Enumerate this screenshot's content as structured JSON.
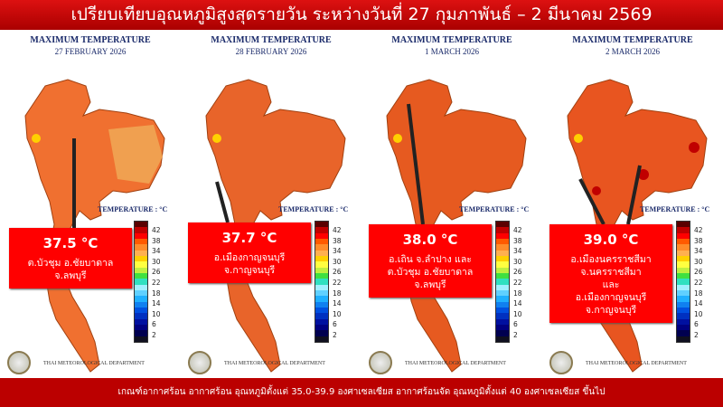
{
  "header": {
    "title": "เปรียบเทียบอุณหภูมิสูงสุดรายวัน ระหว่างวันที่ 27 กุมภาพันธ์ – 2 มีนาคม  2569"
  },
  "footer": {
    "text": "เกณฑ์อากาศร้อน อากาศร้อน อุณหภูมิตั้งแต่ 35.0-39.9 องศาเซลเซียส อากาศร้อนจัด อุณหภูมิตั้งแต่ 40 องศาเซลเซียส ขึ้นไป"
  },
  "legend": {
    "label": "TEMPERATURE : °C",
    "ticks": [
      "42",
      "38",
      "34",
      "30",
      "26",
      "22",
      "18",
      "14",
      "10",
      "6",
      "2"
    ],
    "colors": [
      "#5a0000",
      "#c00000",
      "#ff0000",
      "#ff5a00",
      "#ff8c2a",
      "#ffb050",
      "#ffd000",
      "#ffff40",
      "#c0f040",
      "#40e040",
      "#30e0c0",
      "#a0f0ff",
      "#60d0ff",
      "#20b0ff",
      "#1080f0",
      "#0050e0",
      "#0030c0",
      "#0010a0",
      "#000080",
      "#000050",
      "#101020"
    ]
  },
  "panels": [
    {
      "title": "MAXIMUM TEMPERATURE",
      "date": "27 FEBRUARY   2026",
      "value": "37.5 °C",
      "lines": [
        "ต.บัวชุม อ.ชัยบาดาล จ.ลพบุรี"
      ],
      "dept": "THAI METEOROLOGICAL DEPARTMENT"
    },
    {
      "title": "MAXIMUM TEMPERATURE",
      "date": "28 FEBRUARY   2026",
      "value": "37.7 °C",
      "lines": [
        "อ.เมืองกาญจนบุรี จ.กาญจนบุรี"
      ],
      "dept": "THAI METEOROLOGICAL DEPARTMENT"
    },
    {
      "title": "MAXIMUM TEMPERATURE",
      "date": "1 MARCH   2026",
      "value": "38.0 °C",
      "lines": [
        "อ.เถิน จ.ลำปาง และ",
        "ต.บัวชุม อ.ชัยบาดาล จ.ลพบุรี"
      ],
      "dept": "THAI METEOROLOGICAL DEPARTMENT"
    },
    {
      "title": "MAXIMUM TEMPERATURE",
      "date": "2 MARCH   2026",
      "value": "39.0 °C",
      "lines": [
        "อ.เมืองนครราชสีมา จ.นครราชสีมา",
        "และ",
        "อ.เมืองกาญจนบุรี จ.กาญจนบุรี"
      ],
      "dept": "THAI METEOROLOGICAL DEPARTMENT"
    }
  ]
}
